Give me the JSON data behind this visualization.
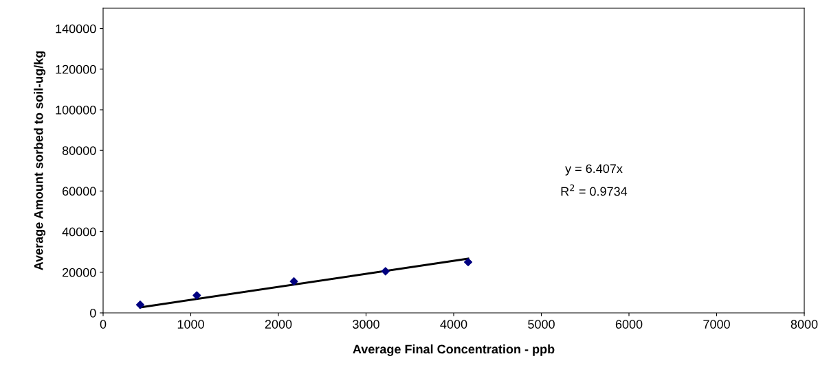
{
  "chart_data": {
    "type": "scatter",
    "xlabel": "Average Final Concentration - ppb",
    "ylabel": "Average Amount sorbed to soil-ug/kg",
    "x": [
      423,
      1069,
      2177,
      3222,
      4165
    ],
    "series": [
      {
        "color": "#000080",
        "marker": "diamond",
        "values": [
          4000,
          8600,
          15500,
          20500,
          25000
        ]
      },
      {
        "type": "line",
        "color": "#000000",
        "x": [
          423,
          4165
        ],
        "values": [
          2700,
          26700
        ]
      }
    ],
    "xlim": [
      0,
      8000
    ],
    "xticks": [
      0,
      1000,
      2000,
      3000,
      4000,
      5000,
      6000,
      7000,
      8000
    ],
    "ylim": [
      0,
      150000
    ],
    "yticks": [
      0,
      20000,
      40000,
      60000,
      80000,
      100000,
      120000,
      140000
    ],
    "annotations": [
      "y = 6.407x",
      "R$^{2}$ = 0.9734"
    ],
    "grid": false,
    "legend": false
  }
}
